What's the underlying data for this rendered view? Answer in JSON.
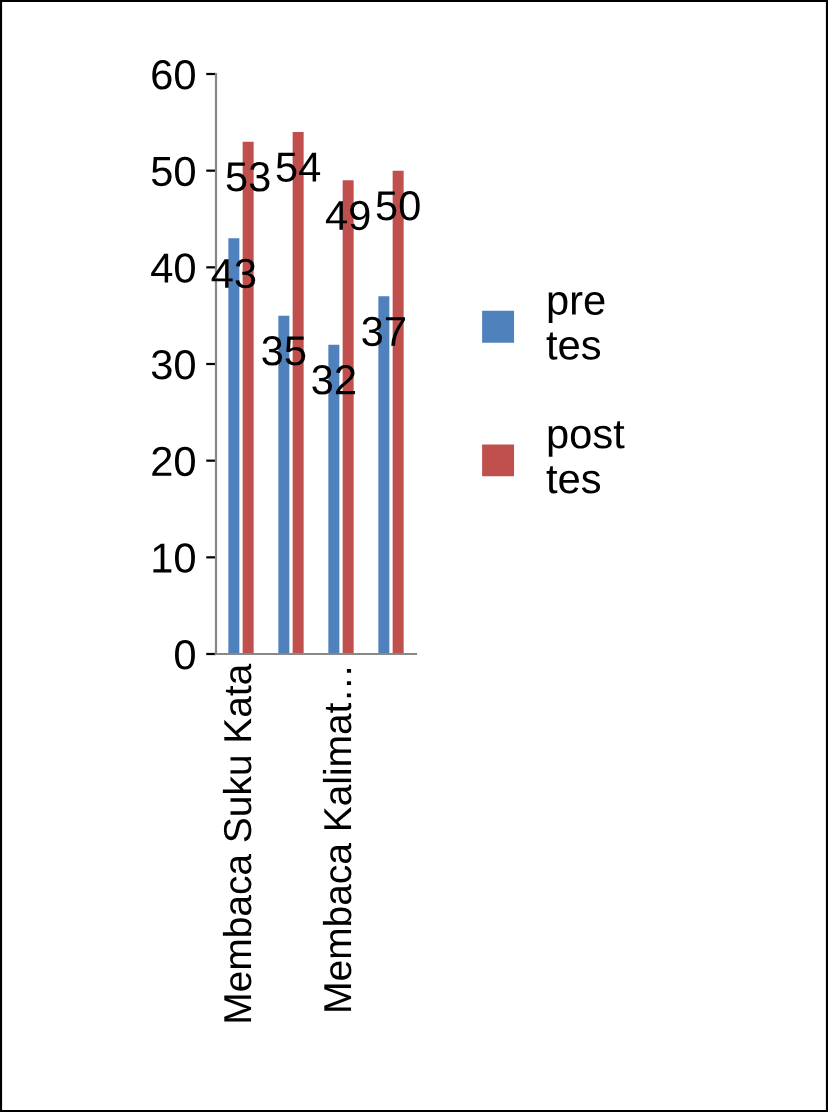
{
  "chart_data": {
    "type": "bar",
    "categories": [
      "Membaca Suku Kata",
      null,
      "Membaca Kalimat…",
      null
    ],
    "series": [
      {
        "name": "pre tes",
        "color": "#4f81bd",
        "values": [
          43,
          35,
          32,
          37
        ]
      },
      {
        "name": "post tes",
        "color": "#c0504d",
        "values": [
          53,
          54,
          49,
          50
        ]
      }
    ],
    "ylim": [
      0,
      60
    ],
    "yticks": [
      0,
      10,
      20,
      30,
      40,
      50,
      60
    ],
    "data_labels": true,
    "grid": false,
    "legend": "right"
  }
}
